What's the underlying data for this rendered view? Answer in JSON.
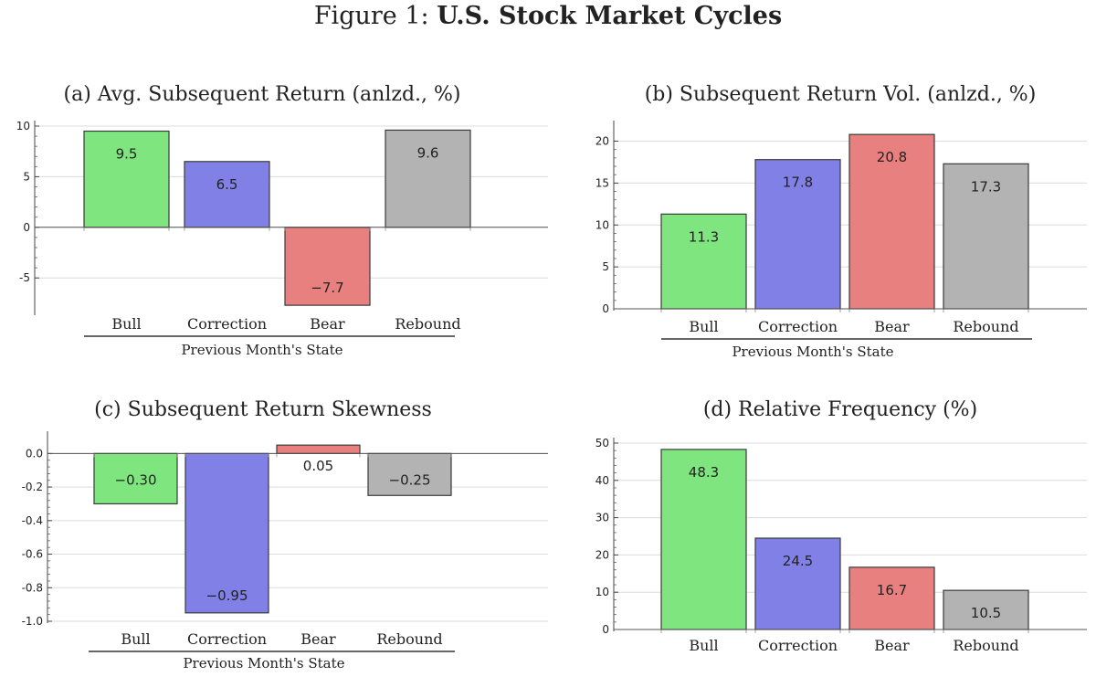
{
  "figure": {
    "prefix": "Figure 1: ",
    "title": "U.S. Stock Market Cycles"
  },
  "colors": {
    "Bull": "#7fe57f",
    "Correction": "#8080e6",
    "Bear": "#e88080",
    "Rebound": "#b3b3b3"
  },
  "chart_data": [
    {
      "type": "bar",
      "title": "(a) Avg. Subsequent Return (anlzd., %)",
      "categories": [
        "Bull",
        "Correction",
        "Bear",
        "Rebound"
      ],
      "values": [
        9.5,
        6.5,
        -7.7,
        9.6
      ],
      "data_labels": [
        "9.5",
        "6.5",
        "−7.7",
        "9.6"
      ],
      "xlabel": "Previous Month's State",
      "ylabel": "",
      "ylim": [
        -8.5,
        10
      ],
      "yticks": [
        -5,
        0,
        5,
        10
      ],
      "ytick_labels": [
        "-5",
        "0",
        "5",
        "10"
      ],
      "grid": true,
      "legend": "none"
    },
    {
      "type": "bar",
      "title": "(b) Subsequent Return Vol. (anlzd., %)",
      "categories": [
        "Bull",
        "Correction",
        "Bear",
        "Rebound"
      ],
      "values": [
        11.3,
        17.8,
        20.8,
        17.3
      ],
      "data_labels": [
        "11.3",
        "17.8",
        "20.8",
        "17.3"
      ],
      "xlabel": "Previous Month's State",
      "ylabel": "",
      "ylim": [
        0,
        21.8
      ],
      "yticks": [
        0,
        5,
        10,
        15,
        20
      ],
      "ytick_labels": [
        "0",
        "5",
        "10",
        "15",
        "20"
      ],
      "grid": true,
      "legend": "none"
    },
    {
      "type": "bar",
      "title": "(c) Subsequent Return Skewness",
      "categories": [
        "Bull",
        "Correction",
        "Bear",
        "Rebound"
      ],
      "values": [
        -0.3,
        -0.95,
        0.05,
        -0.25
      ],
      "data_labels": [
        "−0.30",
        "−0.95",
        "0.05",
        "−0.25"
      ],
      "xlabel": "Previous Month's State",
      "ylabel": "",
      "ylim": [
        -1.0,
        0.1
      ],
      "yticks": [
        -1.0,
        -0.8,
        -0.6,
        -0.4,
        -0.2,
        0.0
      ],
      "ytick_labels": [
        "-1.0",
        "-0.8",
        "-0.6",
        "-0.4",
        "-0.2",
        "0.0"
      ],
      "grid": true,
      "legend": "none"
    },
    {
      "type": "bar",
      "title": "(d) Relative Frequency (%)",
      "categories": [
        "Bull",
        "Correction",
        "Bear",
        "Rebound"
      ],
      "values": [
        48.3,
        24.5,
        16.7,
        10.5
      ],
      "data_labels": [
        "48.3",
        "24.5",
        "16.7",
        "10.5"
      ],
      "xlabel": "",
      "ylabel": "",
      "ylim": [
        0,
        50
      ],
      "yticks": [
        0,
        10,
        20,
        30,
        40,
        50
      ],
      "ytick_labels": [
        "0",
        "10",
        "20",
        "30",
        "40",
        "50"
      ],
      "grid": true,
      "legend": "none"
    }
  ]
}
